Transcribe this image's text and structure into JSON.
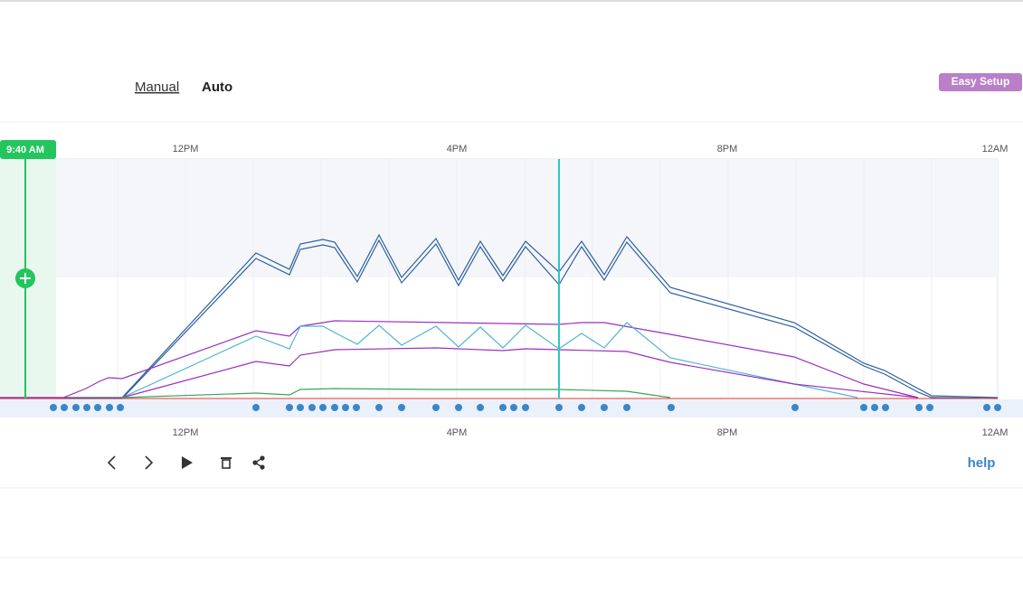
{
  "header": {
    "modes": [
      "Manual",
      "Auto"
    ],
    "easy_setup": "Easy Setup"
  },
  "timeline": {
    "current_time": "9:40 AM",
    "axis_labels": [
      "12PM",
      "4PM",
      "8PM",
      "12AM"
    ]
  },
  "controls": {
    "help": "help"
  }
}
